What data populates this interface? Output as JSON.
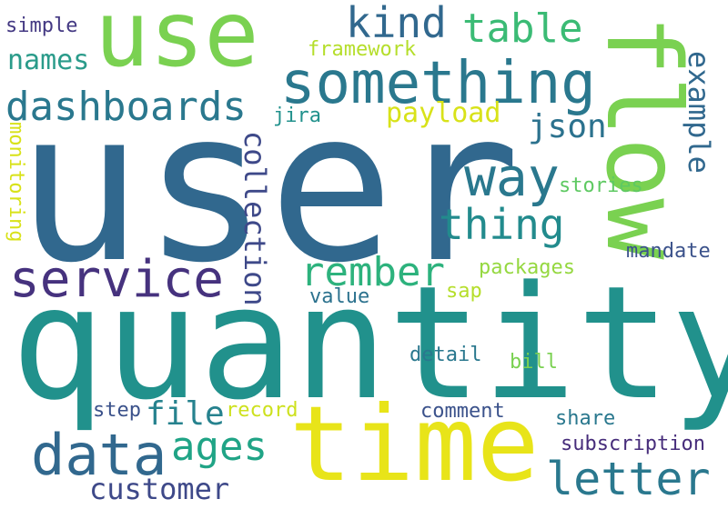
{
  "words": {
    "user": {
      "text": "user",
      "color": "#31688e"
    },
    "quantity": {
      "text": "quantity",
      "color": "#21918c"
    },
    "use": {
      "text": "use",
      "color": "#7ad151"
    },
    "something": {
      "text": "something",
      "color": "#2a788e"
    },
    "flow": {
      "text": "flow",
      "color": "#7ad151"
    },
    "time": {
      "text": "time",
      "color": "#e8e419"
    },
    "kind": {
      "text": "kind",
      "color": "#31688e"
    },
    "table": {
      "text": "table",
      "color": "#3bbb75"
    },
    "dashboards": {
      "text": "dashboards",
      "color": "#2a788e"
    },
    "names": {
      "text": "names",
      "color": "#2a9b8a"
    },
    "simple": {
      "text": "simple",
      "color": "#443983"
    },
    "framework": {
      "text": "framework",
      "color": "#b5de2b"
    },
    "payload": {
      "text": "payload",
      "color": "#d8e219"
    },
    "jira": {
      "text": "jira",
      "color": "#21918c"
    },
    "json": {
      "text": "json",
      "color": "#2c728e"
    },
    "example": {
      "text": "example",
      "color": "#31688e"
    },
    "monitoring": {
      "text": "monitoring",
      "color": "#d8e219"
    },
    "way": {
      "text": "way",
      "color": "#2a788e"
    },
    "thing": {
      "text": "thing",
      "color": "#228b8d"
    },
    "collection": {
      "text": "collection",
      "color": "#3e4989"
    },
    "stories": {
      "text": "stories",
      "color": "#5ec962"
    },
    "service": {
      "text": "service",
      "color": "#46327e"
    },
    "rember": {
      "text": "rember",
      "color": "#2db27d"
    },
    "packages": {
      "text": "packages",
      "color": "#95d840"
    },
    "mandate": {
      "text": "mandate",
      "color": "#3b528b"
    },
    "value": {
      "text": "value",
      "color": "#2c728e"
    },
    "sap": {
      "text": "sap",
      "color": "#b5de2b"
    },
    "detail": {
      "text": "detail",
      "color": "#2a788e"
    },
    "bill": {
      "text": "bill",
      "color": "#7ad151"
    },
    "step": {
      "text": "step",
      "color": "#3b528b"
    },
    "record": {
      "text": "record",
      "color": "#cde11d"
    },
    "file": {
      "text": "file",
      "color": "#26828e"
    },
    "comment": {
      "text": "comment",
      "color": "#3b528b"
    },
    "share": {
      "text": "share",
      "color": "#2a788e"
    },
    "data": {
      "text": "data",
      "color": "#31688e"
    },
    "ages": {
      "text": "ages",
      "color": "#20a486"
    },
    "subscription": {
      "text": "subscription",
      "color": "#472d7b"
    },
    "customer": {
      "text": "customer",
      "color": "#3e4989"
    },
    "letter": {
      "text": "letter",
      "color": "#2a788e"
    }
  }
}
